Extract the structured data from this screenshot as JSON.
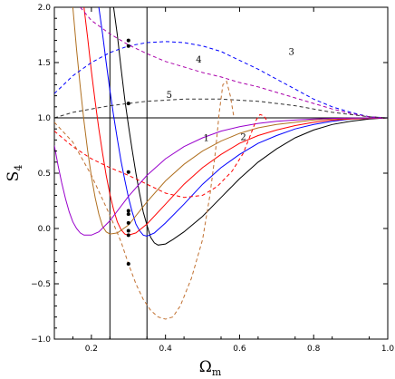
{
  "chart_data": {
    "type": "line",
    "title": "",
    "xlabel": "Ω",
    "xlabel_sub": "m",
    "ylabel": "S",
    "ylabel_sub": "4",
    "xlim": [
      0.1,
      1.0
    ],
    "ylim": [
      -1.0,
      2.0
    ],
    "grid": false,
    "x_ticks": [
      0.2,
      0.4,
      0.6,
      0.8,
      1.0
    ],
    "x_tick_labels": [
      "0.2",
      "0.4",
      "0.6",
      "0.8",
      "1.0"
    ],
    "y_ticks": [
      -1.0,
      -0.5,
      0.0,
      0.5,
      1.0,
      1.5,
      2.0
    ],
    "y_tick_labels": [
      "−1.0",
      "−0.5",
      "0.0",
      "0.5",
      "1.0",
      "1.5",
      "2.0"
    ],
    "reference_lines": {
      "vertical": [
        0.25,
        0.35
      ],
      "horizontal": [
        1.0
      ]
    },
    "curve_labels": [
      {
        "text": "1",
        "x": 0.51,
        "y": 0.79
      },
      {
        "text": "2",
        "x": 0.61,
        "y": 0.8
      },
      {
        "text": "3",
        "x": 0.74,
        "y": 1.57
      },
      {
        "text": "4",
        "x": 0.49,
        "y": 1.5
      },
      {
        "text": "5",
        "x": 0.41,
        "y": 1.18
      }
    ],
    "series": [
      {
        "style": "solid",
        "color": "#000000",
        "points": [
          [
            0.26,
            2.0
          ],
          [
            0.27,
            1.75
          ],
          [
            0.28,
            1.45
          ],
          [
            0.29,
            1.17
          ],
          [
            0.3,
            0.93
          ],
          [
            0.31,
            0.71
          ],
          [
            0.32,
            0.5
          ],
          [
            0.33,
            0.32
          ],
          [
            0.34,
            0.15
          ],
          [
            0.35,
            0.03
          ],
          [
            0.36,
            -0.08
          ],
          [
            0.37,
            -0.13
          ],
          [
            0.38,
            -0.15
          ],
          [
            0.4,
            -0.14
          ],
          [
            0.42,
            -0.1
          ],
          [
            0.45,
            -0.03
          ],
          [
            0.5,
            0.11
          ],
          [
            0.55,
            0.28
          ],
          [
            0.6,
            0.45
          ],
          [
            0.65,
            0.6
          ],
          [
            0.7,
            0.72
          ],
          [
            0.75,
            0.82
          ],
          [
            0.8,
            0.89
          ],
          [
            0.85,
            0.94
          ],
          [
            0.9,
            0.97
          ],
          [
            0.95,
            0.99
          ],
          [
            1.0,
            1.0
          ]
        ]
      },
      {
        "style": "solid",
        "color": "#0000ff",
        "points": [
          [
            0.22,
            2.0
          ],
          [
            0.23,
            1.76
          ],
          [
            0.24,
            1.5
          ],
          [
            0.25,
            1.25
          ],
          [
            0.26,
            1.02
          ],
          [
            0.27,
            0.81
          ],
          [
            0.28,
            0.61
          ],
          [
            0.29,
            0.44
          ],
          [
            0.3,
            0.28
          ],
          [
            0.31,
            0.15
          ],
          [
            0.32,
            0.04
          ],
          [
            0.33,
            -0.02
          ],
          [
            0.34,
            -0.06
          ],
          [
            0.35,
            -0.07
          ],
          [
            0.37,
            -0.04
          ],
          [
            0.4,
            0.05
          ],
          [
            0.45,
            0.22
          ],
          [
            0.5,
            0.4
          ],
          [
            0.55,
            0.55
          ],
          [
            0.6,
            0.67
          ],
          [
            0.65,
            0.77
          ],
          [
            0.7,
            0.84
          ],
          [
            0.75,
            0.9
          ],
          [
            0.8,
            0.94
          ],
          [
            0.85,
            0.97
          ],
          [
            0.9,
            0.99
          ],
          [
            1.0,
            1.0
          ]
        ]
      },
      {
        "style": "solid",
        "color": "#ff0000",
        "points": [
          [
            0.18,
            2.0
          ],
          [
            0.19,
            1.72
          ],
          [
            0.2,
            1.42
          ],
          [
            0.21,
            1.15
          ],
          [
            0.22,
            0.9
          ],
          [
            0.23,
            0.68
          ],
          [
            0.24,
            0.48
          ],
          [
            0.25,
            0.31
          ],
          [
            0.26,
            0.17
          ],
          [
            0.27,
            0.06
          ],
          [
            0.28,
            -0.01
          ],
          [
            0.29,
            -0.05
          ],
          [
            0.3,
            -0.06
          ],
          [
            0.32,
            -0.04
          ],
          [
            0.35,
            0.04
          ],
          [
            0.4,
            0.22
          ],
          [
            0.45,
            0.4
          ],
          [
            0.5,
            0.55
          ],
          [
            0.55,
            0.67
          ],
          [
            0.6,
            0.77
          ],
          [
            0.65,
            0.84
          ],
          [
            0.7,
            0.89
          ],
          [
            0.75,
            0.93
          ],
          [
            0.8,
            0.96
          ],
          [
            0.85,
            0.98
          ],
          [
            0.9,
            0.99
          ],
          [
            1.0,
            1.0
          ]
        ]
      },
      {
        "style": "solid",
        "color": "#b07020",
        "points": [
          [
            0.15,
            2.0
          ],
          [
            0.16,
            1.62
          ],
          [
            0.17,
            1.28
          ],
          [
            0.18,
            0.97
          ],
          [
            0.19,
            0.7
          ],
          [
            0.2,
            0.47
          ],
          [
            0.21,
            0.28
          ],
          [
            0.22,
            0.13
          ],
          [
            0.23,
            0.02
          ],
          [
            0.24,
            -0.03
          ],
          [
            0.25,
            -0.05
          ],
          [
            0.27,
            -0.04
          ],
          [
            0.3,
            0.03
          ],
          [
            0.35,
            0.24
          ],
          [
            0.4,
            0.43
          ],
          [
            0.45,
            0.58
          ],
          [
            0.5,
            0.7
          ],
          [
            0.55,
            0.79
          ],
          [
            0.6,
            0.86
          ],
          [
            0.65,
            0.91
          ],
          [
            0.7,
            0.94
          ],
          [
            0.75,
            0.96
          ],
          [
            0.8,
            0.98
          ],
          [
            0.85,
            0.99
          ],
          [
            0.9,
            0.995
          ],
          [
            1.0,
            1.0
          ]
        ]
      },
      {
        "style": "solid",
        "color": "#9900cc",
        "points": [
          [
            0.1,
            0.75
          ],
          [
            0.11,
            0.57
          ],
          [
            0.12,
            0.41
          ],
          [
            0.13,
            0.27
          ],
          [
            0.14,
            0.15
          ],
          [
            0.15,
            0.06
          ],
          [
            0.16,
            0.0
          ],
          [
            0.17,
            -0.04
          ],
          [
            0.18,
            -0.06
          ],
          [
            0.2,
            -0.06
          ],
          [
            0.22,
            -0.03
          ],
          [
            0.25,
            0.07
          ],
          [
            0.3,
            0.29
          ],
          [
            0.35,
            0.48
          ],
          [
            0.4,
            0.63
          ],
          [
            0.45,
            0.74
          ],
          [
            0.5,
            0.82
          ],
          [
            0.55,
            0.88
          ],
          [
            0.6,
            0.92
          ],
          [
            0.65,
            0.95
          ],
          [
            0.7,
            0.97
          ],
          [
            0.75,
            0.98
          ],
          [
            0.8,
            0.99
          ],
          [
            0.85,
            0.995
          ],
          [
            0.9,
            0.998
          ],
          [
            1.0,
            1.0
          ]
        ]
      },
      {
        "style": "dashed",
        "color": "#0000ff",
        "points": [
          [
            0.1,
            1.22
          ],
          [
            0.15,
            1.38
          ],
          [
            0.2,
            1.5
          ],
          [
            0.25,
            1.59
          ],
          [
            0.3,
            1.65
          ],
          [
            0.35,
            1.68
          ],
          [
            0.4,
            1.69
          ],
          [
            0.45,
            1.68
          ],
          [
            0.5,
            1.65
          ],
          [
            0.55,
            1.6
          ],
          [
            0.6,
            1.52
          ],
          [
            0.65,
            1.44
          ],
          [
            0.7,
            1.35
          ],
          [
            0.75,
            1.26
          ],
          [
            0.8,
            1.17
          ],
          [
            0.85,
            1.1
          ],
          [
            0.9,
            1.05
          ],
          [
            0.95,
            1.01
          ],
          [
            1.0,
            1.0
          ]
        ]
      },
      {
        "style": "dashed",
        "color": "#aa00aa",
        "points": [
          [
            0.17,
            2.0
          ],
          [
            0.2,
            1.88
          ],
          [
            0.25,
            1.76
          ],
          [
            0.3,
            1.66
          ],
          [
            0.35,
            1.58
          ],
          [
            0.4,
            1.51
          ],
          [
            0.45,
            1.46
          ],
          [
            0.5,
            1.41
          ],
          [
            0.55,
            1.37
          ],
          [
            0.6,
            1.32
          ],
          [
            0.65,
            1.28
          ],
          [
            0.7,
            1.23
          ],
          [
            0.75,
            1.18
          ],
          [
            0.8,
            1.13
          ],
          [
            0.85,
            1.08
          ],
          [
            0.9,
            1.04
          ],
          [
            0.95,
            1.01
          ],
          [
            1.0,
            1.0
          ]
        ]
      },
      {
        "style": "dashed",
        "color": "#333333",
        "points": [
          [
            0.1,
            1.0
          ],
          [
            0.15,
            1.05
          ],
          [
            0.2,
            1.08
          ],
          [
            0.25,
            1.11
          ],
          [
            0.3,
            1.13
          ],
          [
            0.35,
            1.15
          ],
          [
            0.4,
            1.16
          ],
          [
            0.45,
            1.17
          ],
          [
            0.5,
            1.17
          ],
          [
            0.55,
            1.17
          ],
          [
            0.6,
            1.16
          ],
          [
            0.65,
            1.15
          ],
          [
            0.7,
            1.13
          ],
          [
            0.75,
            1.11
          ],
          [
            0.8,
            1.08
          ],
          [
            0.85,
            1.05
          ],
          [
            0.9,
            1.03
          ],
          [
            0.95,
            1.01
          ],
          [
            1.0,
            1.0
          ]
        ]
      },
      {
        "style": "dashed",
        "color": "#ff0000",
        "points": [
          [
            0.1,
            0.88
          ],
          [
            0.15,
            0.74
          ],
          [
            0.2,
            0.63
          ],
          [
            0.25,
            0.55
          ],
          [
            0.3,
            0.48
          ],
          [
            0.35,
            0.4
          ],
          [
            0.4,
            0.32
          ],
          [
            0.45,
            0.28
          ],
          [
            0.5,
            0.3
          ],
          [
            0.54,
            0.38
          ],
          [
            0.58,
            0.52
          ],
          [
            0.61,
            0.68
          ],
          [
            0.63,
            0.85
          ],
          [
            0.645,
            0.98
          ],
          [
            0.655,
            1.03
          ],
          [
            0.665,
            1.02
          ],
          [
            0.675,
            0.97
          ]
        ]
      },
      {
        "style": "dashed",
        "color": "#c07030",
        "points": [
          [
            0.1,
            0.96
          ],
          [
            0.15,
            0.78
          ],
          [
            0.2,
            0.48
          ],
          [
            0.25,
            0.12
          ],
          [
            0.28,
            -0.12
          ],
          [
            0.3,
            -0.32
          ],
          [
            0.32,
            -0.5
          ],
          [
            0.34,
            -0.64
          ],
          [
            0.36,
            -0.74
          ],
          [
            0.38,
            -0.8
          ],
          [
            0.4,
            -0.82
          ],
          [
            0.42,
            -0.8
          ],
          [
            0.44,
            -0.7
          ],
          [
            0.47,
            -0.45
          ],
          [
            0.5,
            -0.1
          ],
          [
            0.52,
            0.3
          ],
          [
            0.535,
            0.7
          ],
          [
            0.545,
            1.05
          ],
          [
            0.555,
            1.3
          ],
          [
            0.565,
            1.33
          ],
          [
            0.575,
            1.2
          ],
          [
            0.585,
            1.0
          ]
        ]
      }
    ],
    "markers": [
      {
        "x": 0.3,
        "y": 1.7
      },
      {
        "x": 0.3,
        "y": 1.65
      },
      {
        "x": 0.3,
        "y": 1.13
      },
      {
        "x": 0.3,
        "y": 0.51
      },
      {
        "x": 0.3,
        "y": 0.16
      },
      {
        "x": 0.3,
        "y": 0.13
      },
      {
        "x": 0.3,
        "y": 0.05
      },
      {
        "x": 0.3,
        "y": -0.02
      },
      {
        "x": 0.3,
        "y": -0.06
      },
      {
        "x": 0.3,
        "y": -0.32
      }
    ]
  }
}
